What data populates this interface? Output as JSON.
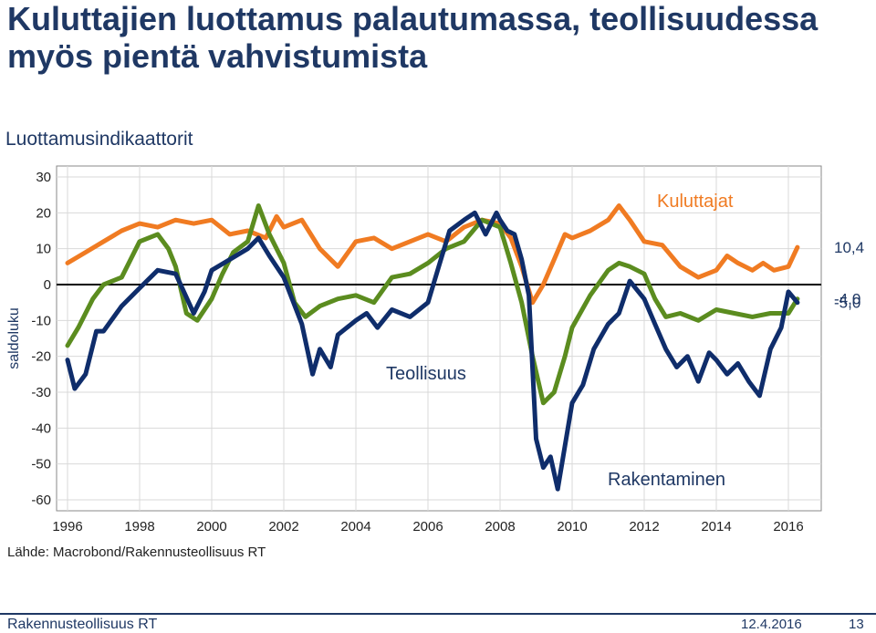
{
  "page": {
    "title": "Kuluttajien luottamus palautumassa, teollisuudessa myös pientä vahvistumista",
    "subtitle": "Luottamusindikaattorit",
    "source": "Lähde: Macrobond/Rakennusteollisuus RT",
    "footer": {
      "org": "Rakennusteollisuus RT",
      "date": "12.4.2016",
      "page": "13"
    }
  },
  "colors": {
    "kuluttajat": "#f07b22",
    "teollisuus": "#5b8c1f",
    "rakentaminen": "#0f2d6b",
    "text": "#1f3864"
  },
  "chart_data": {
    "type": "line",
    "ylabel": "saldoluku",
    "xlim": [
      1995.9,
      2017.3
    ],
    "ylim": [
      -62,
      30
    ],
    "yticks": [
      30,
      20,
      10,
      0,
      -10,
      -20,
      -30,
      -40,
      -50,
      -60
    ],
    "xticks": [
      1996,
      1998,
      2000,
      2002,
      2004,
      2006,
      2008,
      2010,
      2012,
      2014,
      2016
    ],
    "grid": true,
    "zero_line": true,
    "series": [
      {
        "name": "Kuluttajat",
        "key": "kuluttajat",
        "end_label": "10,4",
        "points": [
          [
            1996.0,
            6
          ],
          [
            1996.5,
            9
          ],
          [
            1997.0,
            12
          ],
          [
            1997.5,
            15
          ],
          [
            1998.0,
            17
          ],
          [
            1998.5,
            16
          ],
          [
            1999.0,
            18
          ],
          [
            1999.5,
            17
          ],
          [
            2000.0,
            18
          ],
          [
            2000.5,
            14
          ],
          [
            2001.0,
            15
          ],
          [
            2001.5,
            13
          ],
          [
            2001.8,
            19
          ],
          [
            2002.0,
            16
          ],
          [
            2002.5,
            18
          ],
          [
            2003.0,
            10
          ],
          [
            2003.5,
            5
          ],
          [
            2004.0,
            12
          ],
          [
            2004.5,
            13
          ],
          [
            2005.0,
            10
          ],
          [
            2005.5,
            12
          ],
          [
            2006.0,
            14
          ],
          [
            2006.5,
            12
          ],
          [
            2007.0,
            16
          ],
          [
            2007.5,
            18
          ],
          [
            2008.0,
            17
          ],
          [
            2008.3,
            13
          ],
          [
            2008.6,
            5
          ],
          [
            2008.9,
            -5
          ],
          [
            2009.2,
            0
          ],
          [
            2009.5,
            7
          ],
          [
            2009.8,
            14
          ],
          [
            2010.0,
            13
          ],
          [
            2010.5,
            15
          ],
          [
            2011.0,
            18
          ],
          [
            2011.3,
            22
          ],
          [
            2011.6,
            18
          ],
          [
            2012.0,
            12
          ],
          [
            2012.5,
            11
          ],
          [
            2013.0,
            5
          ],
          [
            2013.5,
            2
          ],
          [
            2014.0,
            4
          ],
          [
            2014.3,
            8
          ],
          [
            2014.6,
            6
          ],
          [
            2015.0,
            4
          ],
          [
            2015.3,
            6
          ],
          [
            2015.6,
            4
          ],
          [
            2016.0,
            5
          ],
          [
            2016.25,
            10.4
          ]
        ]
      },
      {
        "name": "Teollisuus",
        "key": "teollisuus",
        "end_label": "-4,0",
        "points": [
          [
            1996.0,
            -17
          ],
          [
            1996.3,
            -12
          ],
          [
            1996.7,
            -4
          ],
          [
            1997.0,
            0
          ],
          [
            1997.5,
            2
          ],
          [
            1998.0,
            12
          ],
          [
            1998.5,
            14
          ],
          [
            1998.8,
            10
          ],
          [
            1999.0,
            5
          ],
          [
            1999.3,
            -8
          ],
          [
            1999.6,
            -10
          ],
          [
            2000.0,
            -4
          ],
          [
            2000.3,
            3
          ],
          [
            2000.6,
            9
          ],
          [
            2001.0,
            12
          ],
          [
            2001.3,
            22
          ],
          [
            2001.6,
            14
          ],
          [
            2002.0,
            6
          ],
          [
            2002.3,
            -5
          ],
          [
            2002.6,
            -9
          ],
          [
            2003.0,
            -6
          ],
          [
            2003.5,
            -4
          ],
          [
            2004.0,
            -3
          ],
          [
            2004.5,
            -5
          ],
          [
            2005.0,
            2
          ],
          [
            2005.5,
            3
          ],
          [
            2006.0,
            6
          ],
          [
            2006.5,
            10
          ],
          [
            2007.0,
            12
          ],
          [
            2007.5,
            18
          ],
          [
            2008.0,
            16
          ],
          [
            2008.3,
            6
          ],
          [
            2008.6,
            -5
          ],
          [
            2008.9,
            -20
          ],
          [
            2009.2,
            -33
          ],
          [
            2009.5,
            -30
          ],
          [
            2009.8,
            -20
          ],
          [
            2010.0,
            -12
          ],
          [
            2010.5,
            -3
          ],
          [
            2011.0,
            4
          ],
          [
            2011.3,
            6
          ],
          [
            2011.6,
            5
          ],
          [
            2012.0,
            3
          ],
          [
            2012.3,
            -4
          ],
          [
            2012.6,
            -9
          ],
          [
            2013.0,
            -8
          ],
          [
            2013.5,
            -10
          ],
          [
            2014.0,
            -7
          ],
          [
            2014.5,
            -8
          ],
          [
            2015.0,
            -9
          ],
          [
            2015.5,
            -8
          ],
          [
            2016.0,
            -8
          ],
          [
            2016.25,
            -4.0
          ]
        ]
      },
      {
        "name": "Rakentaminen",
        "key": "rakentaminen",
        "end_label": "-5,0",
        "points": [
          [
            1996.0,
            -21
          ],
          [
            1996.2,
            -29
          ],
          [
            1996.5,
            -25
          ],
          [
            1996.8,
            -13
          ],
          [
            1997.0,
            -13
          ],
          [
            1997.5,
            -6
          ],
          [
            1998.0,
            -1
          ],
          [
            1998.5,
            4
          ],
          [
            1999.0,
            3
          ],
          [
            1999.5,
            -8
          ],
          [
            1999.8,
            -2
          ],
          [
            2000.0,
            4
          ],
          [
            2000.5,
            7
          ],
          [
            2001.0,
            10
          ],
          [
            2001.3,
            13
          ],
          [
            2001.6,
            8
          ],
          [
            2002.0,
            2
          ],
          [
            2002.5,
            -11
          ],
          [
            2002.8,
            -25
          ],
          [
            2003.0,
            -18
          ],
          [
            2003.3,
            -23
          ],
          [
            2003.5,
            -14
          ],
          [
            2004.0,
            -10
          ],
          [
            2004.3,
            -8
          ],
          [
            2004.6,
            -12
          ],
          [
            2005.0,
            -7
          ],
          [
            2005.5,
            -9
          ],
          [
            2006.0,
            -5
          ],
          [
            2006.3,
            5
          ],
          [
            2006.6,
            15
          ],
          [
            2007.0,
            18
          ],
          [
            2007.3,
            20
          ],
          [
            2007.6,
            14
          ],
          [
            2007.9,
            20
          ],
          [
            2008.0,
            18
          ],
          [
            2008.2,
            15
          ],
          [
            2008.4,
            14
          ],
          [
            2008.6,
            7
          ],
          [
            2008.8,
            -3
          ],
          [
            2009.0,
            -43
          ],
          [
            2009.2,
            -51
          ],
          [
            2009.4,
            -48
          ],
          [
            2009.6,
            -57
          ],
          [
            2009.8,
            -45
          ],
          [
            2010.0,
            -33
          ],
          [
            2010.3,
            -28
          ],
          [
            2010.6,
            -18
          ],
          [
            2011.0,
            -11
          ],
          [
            2011.3,
            -8
          ],
          [
            2011.6,
            1
          ],
          [
            2012.0,
            -4
          ],
          [
            2012.3,
            -11
          ],
          [
            2012.6,
            -18
          ],
          [
            2012.9,
            -23
          ],
          [
            2013.2,
            -20
          ],
          [
            2013.5,
            -27
          ],
          [
            2013.8,
            -19
          ],
          [
            2014.0,
            -21
          ],
          [
            2014.3,
            -25
          ],
          [
            2014.6,
            -22
          ],
          [
            2014.9,
            -27
          ],
          [
            2015.2,
            -31
          ],
          [
            2015.5,
            -18
          ],
          [
            2015.8,
            -12
          ],
          [
            2016.0,
            -2
          ],
          [
            2016.25,
            -5.0
          ]
        ]
      }
    ],
    "series_labels": [
      {
        "key": "kuluttajat",
        "text": "Kuluttajat"
      },
      {
        "key": "teollisuus",
        "text": "Teollisuus"
      },
      {
        "key": "rakentaminen",
        "text": "Rakentaminen"
      }
    ]
  }
}
